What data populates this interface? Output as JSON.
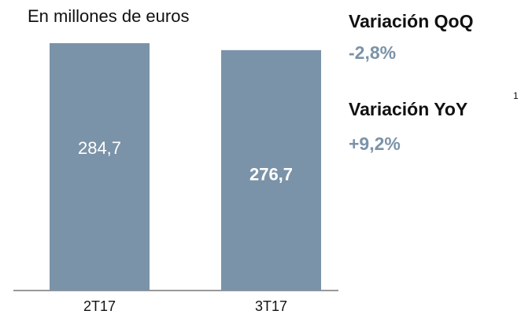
{
  "chart_data": {
    "type": "bar",
    "title": "En millones de euros",
    "categories": [
      "2T17",
      "3T17"
    ],
    "values": [
      284.7,
      276.7
    ],
    "value_labels": [
      "284,7",
      "276,7"
    ],
    "color": "#7b93a8"
  },
  "kpis": [
    {
      "label": "Variación QoQ",
      "value": "-2,8%"
    },
    {
      "label": "Variación YoY",
      "value": "+9,2%",
      "footnote": "1"
    }
  ]
}
